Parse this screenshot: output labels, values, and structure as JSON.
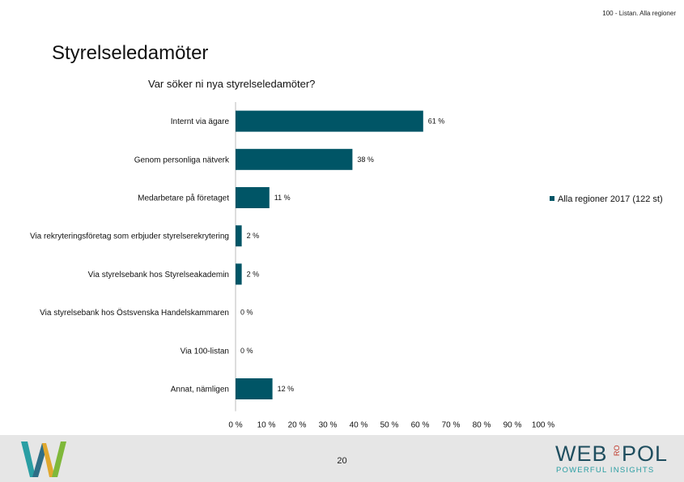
{
  "header": {
    "note": "100 - Listan. Alla regioner"
  },
  "slide": {
    "title": "Styrelseledamöter"
  },
  "chart_data": {
    "type": "bar",
    "orientation": "horizontal",
    "title": "Var söker ni nya styrelseledamöter?",
    "categories": [
      "Internt via ägare",
      "Genom personliga nätverk",
      "Medarbetare på företaget",
      "Via rekryteringsföretag som erbjuder styrelserekrytering",
      "Via styrelsebank hos Styrelseakademin",
      "Via styrelsebank hos Östsvenska Handelskammaren",
      "Via 100-listan",
      "Annat, nämligen"
    ],
    "series": [
      {
        "name": "Alla regioner 2017 (122 st)",
        "values": [
          61,
          38,
          11,
          2,
          2,
          0,
          0,
          12
        ],
        "labels": [
          "61 %",
          "38 %",
          "11 %",
          "2 %",
          "2 %",
          "0 %",
          "0 %",
          "12 %"
        ],
        "color": "#005566"
      }
    ],
    "xlim": [
      0,
      100
    ],
    "xticks": [
      0,
      10,
      20,
      30,
      40,
      50,
      60,
      70,
      80,
      90,
      100
    ],
    "xtick_labels": [
      "0 %",
      "10 %",
      "20 %",
      "30 %",
      "40 %",
      "50 %",
      "60 %",
      "70 %",
      "80 %",
      "90 %",
      "100 %"
    ],
    "legend": {
      "placement": "right",
      "label": "Alla regioner 2017 (122 st)"
    },
    "grid": false
  },
  "footer": {
    "page_number": "20",
    "brand_web": "WEB",
    "brand_ro": "RO",
    "brand_pol": "POL",
    "brand_tagline": "POWERFUL INSIGHTS",
    "colors": {
      "background": "#e6e6e6",
      "brand": "#1f4e5f"
    }
  }
}
